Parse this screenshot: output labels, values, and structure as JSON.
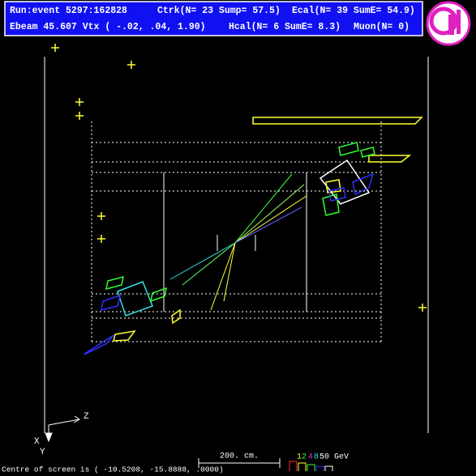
{
  "header": {
    "line1": {
      "run_event": "Run:event 5297:162828",
      "ctrk": "Ctrk(N= 23 Sump= 57.5)",
      "ecal": "Ecal(N= 39 SumE= 54.9)"
    },
    "line2": {
      "ebeam": "Ebeam 45.607 Vtx ( -.02,  .04, 1.90)",
      "hcal": "Hcal(N= 6 SumE=  8.3)",
      "muon": "Muon(N= 0)"
    }
  },
  "axes": {
    "z": "Z",
    "x": "X",
    "y": "Y"
  },
  "scale": "200. cm.",
  "energy_scale": {
    "e1": "1",
    "e2": "2",
    "e4": "4",
    "e8": "8",
    "e50": "50 GeV"
  },
  "footer": "Centre of screen is ( -10.5208, -15.8888, .0000)"
}
